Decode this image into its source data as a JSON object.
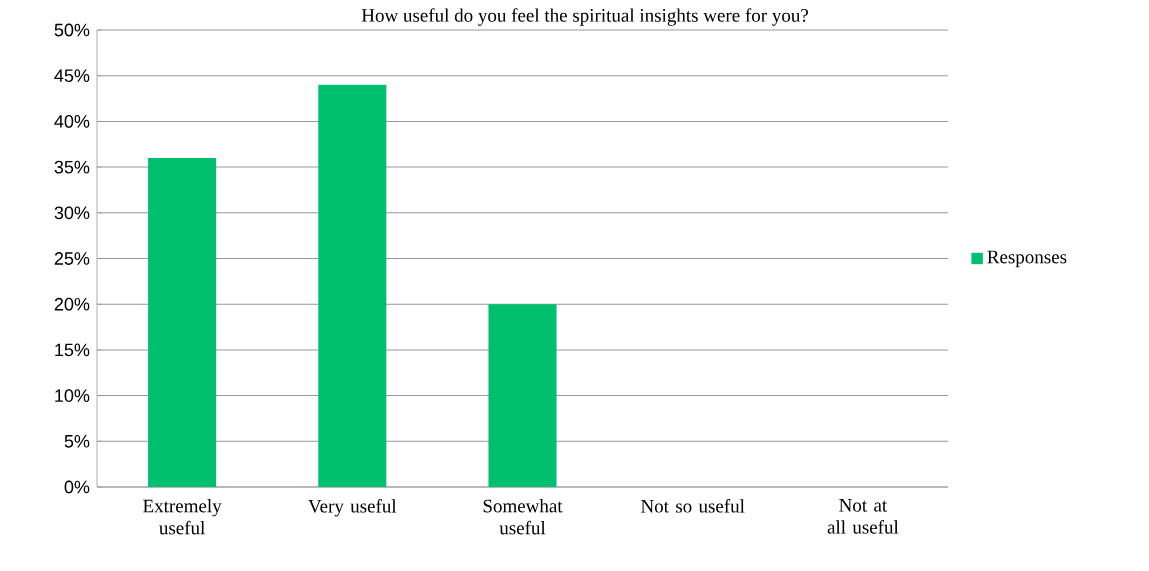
{
  "chart_data": {
    "type": "bar",
    "title": "How useful do you feel the spiritual insights were for you?",
    "categories": [
      "Extremely useful",
      "Very useful",
      "Somewhat useful",
      "Not so useful",
      "Not at all useful"
    ],
    "series": [
      {
        "name": "Responses",
        "color": "#00bf6f",
        "values": [
          36,
          44,
          20,
          0,
          0
        ]
      }
    ],
    "ylim": [
      0,
      50
    ],
    "yticks": [
      {
        "value": 0,
        "label": "0%"
      },
      {
        "value": 5,
        "label": "5%"
      },
      {
        "value": 10,
        "label": "10%"
      },
      {
        "value": 15,
        "label": "15%"
      },
      {
        "value": 20,
        "label": "20%"
      },
      {
        "value": 25,
        "label": "25%"
      },
      {
        "value": 30,
        "label": "30%"
      },
      {
        "value": 35,
        "label": "35%"
      },
      {
        "value": 40,
        "label": "40%"
      },
      {
        "value": 45,
        "label": "45%"
      },
      {
        "value": 50,
        "label": "50%"
      }
    ],
    "grid": "y",
    "legend": "right"
  }
}
